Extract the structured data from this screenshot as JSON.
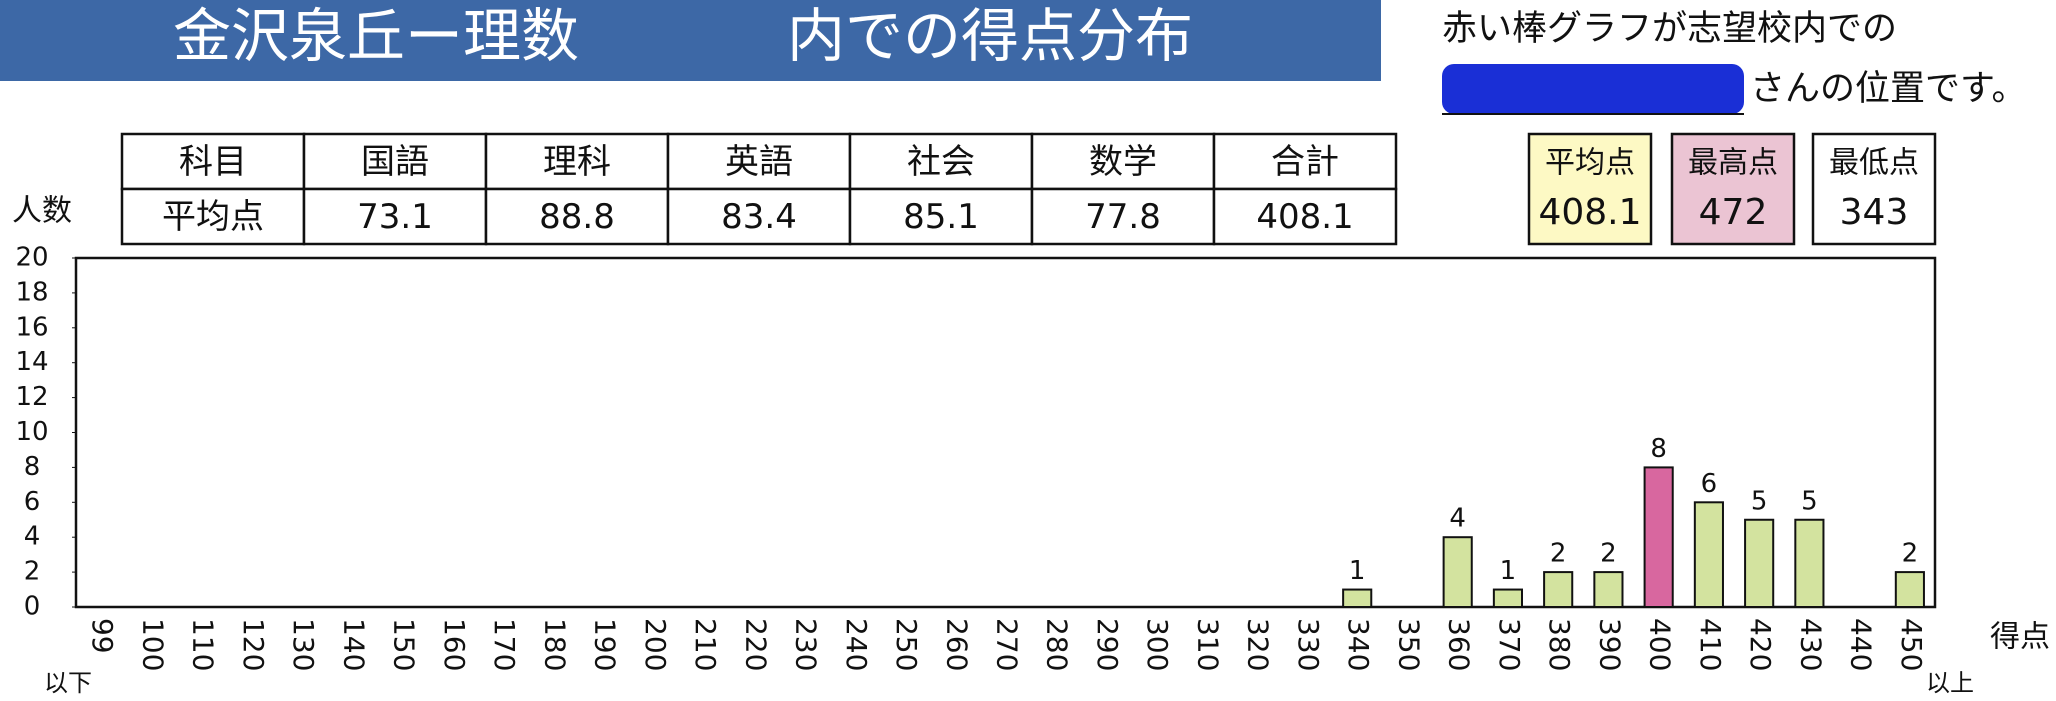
{
  "chart_data": {
    "type": "bar",
    "title_parts": [
      "金沢泉丘ー理数",
      "内での得点分布"
    ],
    "note": [
      "赤い棒グラフが志望校内での",
      "さんの位置です。"
    ],
    "y_label": "人数",
    "x_label": "得点",
    "first_category_note": "以下",
    "last_category_note": "以上",
    "categories": [
      "99",
      "100",
      "110",
      "120",
      "130",
      "140",
      "150",
      "160",
      "170",
      "180",
      "190",
      "200",
      "210",
      "220",
      "230",
      "240",
      "250",
      "260",
      "270",
      "280",
      "290",
      "300",
      "310",
      "320",
      "330",
      "340",
      "350",
      "360",
      "370",
      "380",
      "390",
      "400",
      "410",
      "420",
      "430",
      "440",
      "450"
    ],
    "values": [
      0,
      0,
      0,
      0,
      0,
      0,
      0,
      0,
      0,
      0,
      0,
      0,
      0,
      0,
      0,
      0,
      0,
      0,
      0,
      0,
      0,
      0,
      0,
      0,
      0,
      1,
      0,
      4,
      1,
      2,
      2,
      8,
      6,
      5,
      5,
      0,
      2
    ],
    "colors": [
      "#d3e39f",
      "#d3e39f",
      "#d3e39f",
      "#d3e39f",
      "#d3e39f",
      "#d3e39f",
      "#d3e39f",
      "#d3e39f",
      "#d3e39f",
      "#d3e39f",
      "#d3e39f",
      "#d3e39f",
      "#d3e39f",
      "#d3e39f",
      "#d3e39f",
      "#d3e39f",
      "#d3e39f",
      "#d3e39f",
      "#d3e39f",
      "#d3e39f",
      "#d3e39f",
      "#d3e39f",
      "#d3e39f",
      "#d3e39f",
      "#d3e39f",
      "#d3e39f",
      "#d3e39f",
      "#d3e39f",
      "#d3e39f",
      "#d3e39f",
      "#d3e39f",
      "#d8679f",
      "#d3e39f",
      "#d3e39f",
      "#d3e39f",
      "#d3e39f",
      "#d3e39f"
    ],
    "ylim": [
      0,
      20
    ],
    "yticks": [
      0,
      2,
      4,
      6,
      8,
      10,
      12,
      14,
      16,
      18,
      20
    ],
    "grid": false
  },
  "table": {
    "header": [
      "科目",
      "国語",
      "理科",
      "英語",
      "社会",
      "数学",
      "合計"
    ],
    "rows": [
      [
        "平均点",
        "73.1",
        "88.8",
        "83.4",
        "85.1",
        "77.8",
        "408.1"
      ]
    ]
  },
  "summary": [
    {
      "label": "平均点",
      "value": "408.1",
      "color": "#fdf9c4"
    },
    {
      "label": "最高点",
      "value": "472",
      "color": "#ebc4d3"
    },
    {
      "label": "最低点",
      "value": "343",
      "color": "#ffffff"
    }
  ]
}
